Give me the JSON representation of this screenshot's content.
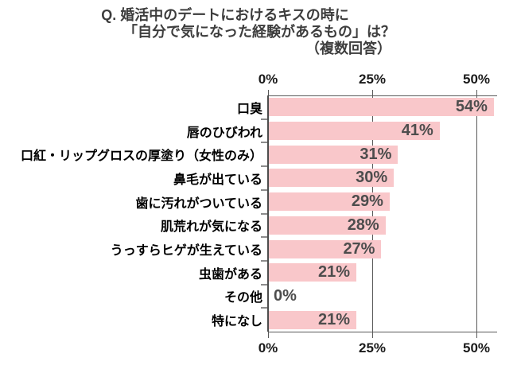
{
  "title": {
    "line1": "Q. 婚活中のデートにおけるキスの時に",
    "line2": "「自分で気になった経験があるもの」は？",
    "line3": "（複数回答）"
  },
  "chart_data": {
    "type": "bar",
    "orientation": "horizontal",
    "title": "Q. 婚活中のデートにおけるキスの時に「自分で気になった経験があるもの」は？（複数回答）",
    "categories": [
      "口臭",
      "唇のひびわれ",
      "口紅・リップグロスの厚塗り（女性のみ）",
      "鼻毛が出ている",
      "歯に汚れがついている",
      "肌荒れが気になる",
      "うっすらヒゲが生えている",
      "虫歯がある",
      "その他",
      "特になし"
    ],
    "values": [
      54,
      41,
      31,
      30,
      29,
      28,
      27,
      21,
      0,
      21
    ],
    "value_labels": [
      "54%",
      "41%",
      "31%",
      "30%",
      "29%",
      "28%",
      "27%",
      "21%",
      "0%",
      "21%"
    ],
    "axis_ticks": [
      {
        "label": "0%",
        "value": 0
      },
      {
        "label": "25%",
        "value": 25
      },
      {
        "label": "50%",
        "value": 50
      }
    ],
    "xlim": [
      0,
      55
    ],
    "grid": true,
    "axis_labels_position": "top and bottom",
    "legend": "none",
    "colors": {
      "bar": "#f9c7ca",
      "axis": "#595959",
      "gridline": "#595959",
      "value_text": "#4d4d4d",
      "category_text": "#000000",
      "title_text": "#3d3d3d"
    }
  }
}
